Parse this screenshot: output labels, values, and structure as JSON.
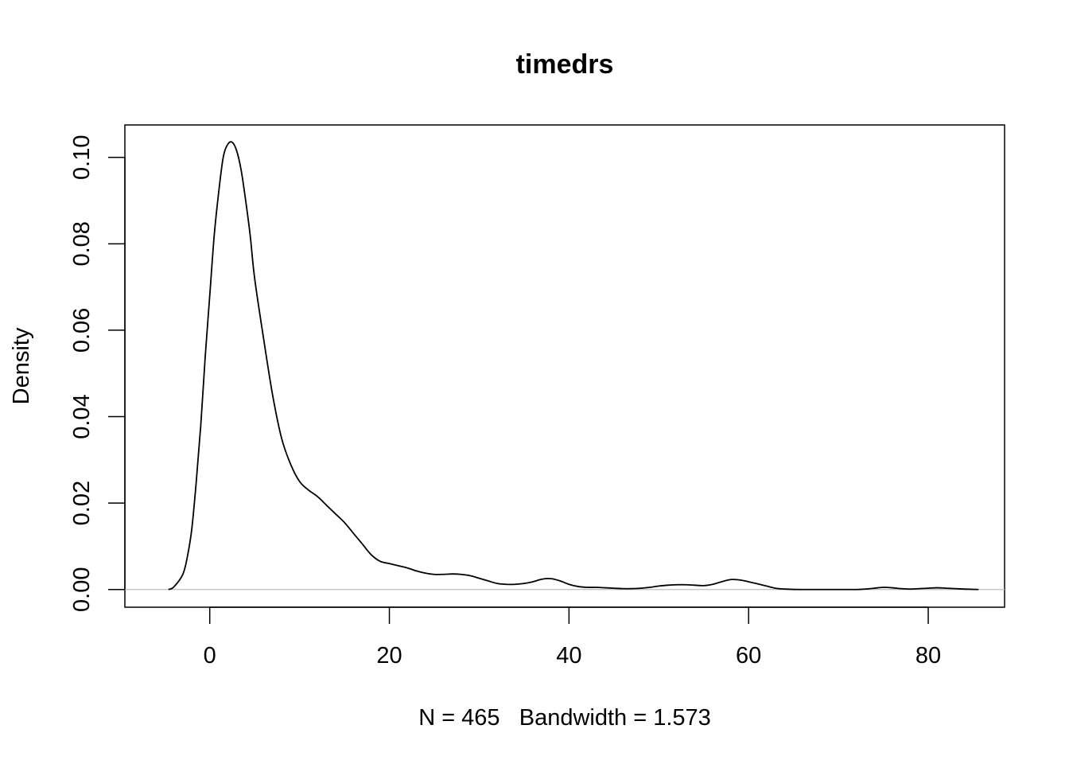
{
  "chart_data": {
    "type": "line",
    "title": "timedrs",
    "xlabel": "N = 465   Bandwidth = 1.573",
    "ylabel": "Density",
    "xlim": [
      -9.45,
      88.5
    ],
    "ylim": [
      -0.0041,
      0.1075
    ],
    "x_ticks": [
      0,
      20,
      40,
      60,
      80
    ],
    "x_tick_labels": [
      "0",
      "20",
      "40",
      "60",
      "80"
    ],
    "y_ticks": [
      0,
      0.02,
      0.04,
      0.06,
      0.08,
      0.1
    ],
    "y_tick_labels": [
      "0.00",
      "0.02",
      "0.04",
      "0.06",
      "0.08",
      "0.10"
    ],
    "baseline": 0,
    "grid": false,
    "series": [
      {
        "x": [
          -4.6,
          -4.0,
          -3.0,
          -2.5,
          -2.0,
          -1.5,
          -1.0,
          -0.5,
          0.0,
          0.5,
          1.0,
          1.5,
          2.0,
          2.5,
          3.0,
          3.5,
          4.0,
          4.5,
          5.0,
          6.0,
          7.0,
          8.0,
          9.0,
          10.0,
          11.0,
          12.0,
          13.0,
          14.0,
          15.0,
          16.0,
          17.0,
          18.0,
          19.0,
          20.0,
          21.0,
          22.0,
          23.0,
          24.0,
          25.0,
          26.0,
          27.0,
          28.0,
          29.0,
          30.0,
          31.0,
          32.0,
          33.0,
          34.0,
          35.0,
          36.0,
          37.0,
          38.0,
          39.0,
          40.0,
          41.0,
          42.0,
          43.0,
          44.0,
          45.0,
          46.0,
          47.0,
          48.0,
          49.0,
          50.0,
          51.0,
          52.0,
          53.0,
          54.0,
          55.0,
          56.0,
          57.0,
          58.0,
          59.0,
          60.0,
          61.0,
          62.0,
          63.0,
          64.0,
          66.0,
          68.0,
          70.0,
          72.0,
          73.0,
          74.0,
          75.0,
          76.0,
          77.0,
          78.0,
          79.0,
          80.0,
          81.0,
          82.0,
          83.0,
          84.0,
          85.6
        ],
        "y": [
          0.0,
          0.0006,
          0.0035,
          0.0075,
          0.014,
          0.025,
          0.038,
          0.054,
          0.068,
          0.082,
          0.092,
          0.1,
          0.103,
          0.1035,
          0.1015,
          0.097,
          0.09,
          0.082,
          0.072,
          0.058,
          0.045,
          0.035,
          0.029,
          0.025,
          0.023,
          0.0215,
          0.0195,
          0.0175,
          0.0155,
          0.013,
          0.0105,
          0.008,
          0.0065,
          0.006,
          0.0055,
          0.005,
          0.0043,
          0.0038,
          0.0035,
          0.0035,
          0.0036,
          0.0035,
          0.0032,
          0.0026,
          0.002,
          0.0014,
          0.0012,
          0.0012,
          0.0014,
          0.0018,
          0.0024,
          0.0025,
          0.002,
          0.0012,
          0.0007,
          0.0005,
          0.0005,
          0.0004,
          0.0003,
          0.0002,
          0.0002,
          0.0003,
          0.0005,
          0.0008,
          0.001,
          0.0011,
          0.0011,
          0.001,
          0.0009,
          0.0012,
          0.0018,
          0.0023,
          0.0022,
          0.0018,
          0.0013,
          0.0008,
          0.0003,
          0.0001,
          0.0,
          0.0,
          0.0,
          0.0,
          0.0001,
          0.0003,
          0.0005,
          0.0004,
          0.0002,
          0.0001,
          0.0002,
          0.0003,
          0.0004,
          0.0003,
          0.0002,
          0.0001,
          0.0
        ]
      }
    ]
  }
}
